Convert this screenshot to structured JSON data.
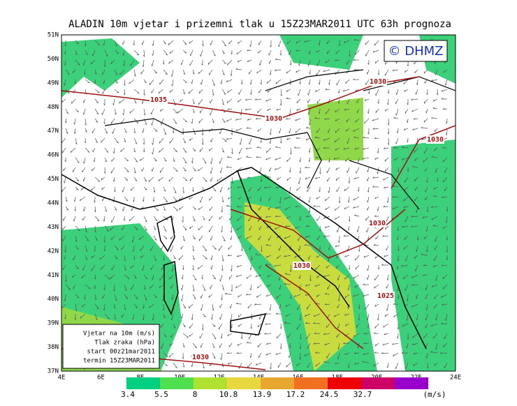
{
  "header": {
    "title": "ALADIN 10m vjetar i prizemni tlak u 15Z23MAR2011 UTC 63h prognoza"
  },
  "map": {
    "copyright": "© DHMZ",
    "lat_labels": [
      "51N",
      "50N",
      "49N",
      "48N",
      "47N",
      "46N",
      "45N",
      "44N",
      "43N",
      "42N",
      "41N",
      "40N",
      "39N",
      "38N",
      "37N"
    ],
    "lon_labels": [
      "4E",
      "6E",
      "8E",
      "10E",
      "12E",
      "14E",
      "16E",
      "18E",
      "20E",
      "22E",
      "24E"
    ],
    "isobar_labels": [
      "1035",
      "1030",
      "1030",
      "1030",
      "1030",
      "1030",
      "1025",
      "1030"
    ],
    "legend": [
      "Vjetar na 10m (m/s)",
      "Tlak zraka (hPa)",
      "start 00z21mar2011",
      "termin 15Z23MAR2011"
    ]
  },
  "colorbar": {
    "labels": [
      "3.4",
      "5.5",
      "8",
      "10.8",
      "13.9",
      "17.2",
      "24.5",
      "32.7"
    ],
    "unit": "(m/s)"
  }
}
